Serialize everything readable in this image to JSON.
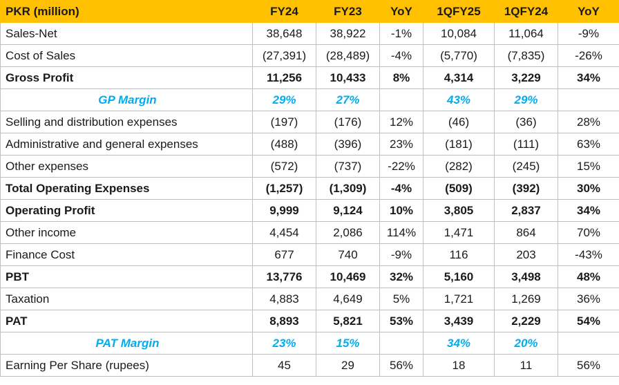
{
  "table": {
    "headers": [
      "PKR (million)",
      "FY24",
      "FY23",
      "YoY",
      "1QFY25",
      "1QFY24",
      "YoY"
    ],
    "rows": [
      {
        "style": "normal",
        "cells": [
          "Sales-Net",
          "38,648",
          "38,922",
          "-1%",
          "10,084",
          "11,064",
          "-9%"
        ]
      },
      {
        "style": "normal",
        "cells": [
          "Cost of Sales",
          "(27,391)",
          "(28,489)",
          "-4%",
          "(5,770)",
          "(7,835)",
          "-26%"
        ]
      },
      {
        "style": "bold",
        "cells": [
          "Gross Profit",
          "11,256",
          "10,433",
          "8%",
          "4,314",
          "3,229",
          "34%"
        ]
      },
      {
        "style": "margin",
        "cells": [
          "GP Margin",
          "29%",
          "27%",
          "",
          "43%",
          "29%",
          ""
        ]
      },
      {
        "style": "normal",
        "cells": [
          "Selling and distribution expenses",
          "(197)",
          "(176)",
          "12%",
          "(46)",
          "(36)",
          "28%"
        ]
      },
      {
        "style": "normal",
        "cells": [
          "Administrative and general expenses",
          "(488)",
          "(396)",
          "23%",
          "(181)",
          "(111)",
          "63%"
        ]
      },
      {
        "style": "normal",
        "cells": [
          "Other expenses",
          "(572)",
          "(737)",
          "-22%",
          "(282)",
          "(245)",
          "15%"
        ]
      },
      {
        "style": "bold",
        "cells": [
          "Total Operating Expenses",
          "(1,257)",
          "(1,309)",
          "-4%",
          "(509)",
          "(392)",
          "30%"
        ]
      },
      {
        "style": "bold",
        "cells": [
          "Operating Profit",
          "9,999",
          "9,124",
          "10%",
          "3,805",
          "2,837",
          "34%"
        ]
      },
      {
        "style": "normal",
        "cells": [
          "Other income",
          "4,454",
          "2,086",
          "114%",
          "1,471",
          "864",
          "70%"
        ]
      },
      {
        "style": "normal",
        "cells": [
          "Finance Cost",
          "677",
          "740",
          "-9%",
          "116",
          "203",
          "-43%"
        ]
      },
      {
        "style": "bold",
        "cells": [
          "PBT",
          "13,776",
          "10,469",
          "32%",
          "5,160",
          "3,498",
          "48%"
        ]
      },
      {
        "style": "normal",
        "cells": [
          "Taxation",
          "4,883",
          "4,649",
          "5%",
          "1,721",
          "1,269",
          "36%"
        ]
      },
      {
        "style": "bold",
        "cells": [
          "PAT",
          "8,893",
          "5,821",
          "53%",
          "3,439",
          "2,229",
          "54%"
        ]
      },
      {
        "style": "margin",
        "cells": [
          "PAT Margin",
          "23%",
          "15%",
          "",
          "34%",
          "20%",
          ""
        ]
      },
      {
        "style": "normal",
        "cells": [
          "Earning Per Share (rupees)",
          "45",
          "29",
          "56%",
          "18",
          "11",
          "56%"
        ]
      }
    ]
  },
  "colors": {
    "header_bg": "#ffc000",
    "margin_text": "#00aeef",
    "grid": "#bfbfbf"
  }
}
